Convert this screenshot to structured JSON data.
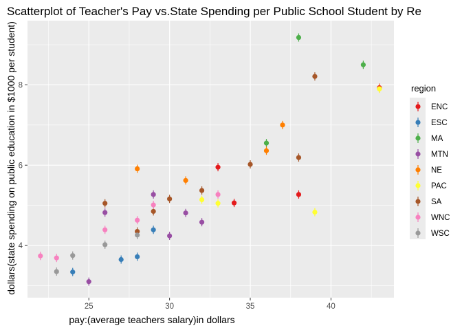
{
  "chart_data": {
    "type": "scatter",
    "title": "Scatterplot of Teacher's Pay vs.State Spending per Public School Student by Re",
    "xlabel": "pay:(average teachers salary)in dollars",
    "ylabel": "dollars(state spending on public education in $1000 per student)",
    "xlim": [
      21.2,
      43.9
    ],
    "ylim": [
      2.7,
      9.6
    ],
    "x_ticks": [
      25,
      30,
      35,
      40
    ],
    "y_ticks": [
      4,
      6,
      8
    ],
    "grid": true,
    "legend_title": "region",
    "legend_position": "right",
    "series": [
      {
        "name": "ENC",
        "color": "#e41a1c",
        "points": [
          {
            "x": 33,
            "y": 5.95
          },
          {
            "x": 34,
            "y": 5.06
          },
          {
            "x": 38,
            "y": 5.27
          },
          {
            "x": 43,
            "y": 7.93
          }
        ]
      },
      {
        "name": "ESC",
        "color": "#377eb8",
        "points": [
          {
            "x": 24,
            "y": 3.34
          },
          {
            "x": 27,
            "y": 3.65
          },
          {
            "x": 28,
            "y": 3.72
          },
          {
            "x": 29,
            "y": 4.39
          }
        ]
      },
      {
        "name": "MA",
        "color": "#4daf4a",
        "points": [
          {
            "x": 36,
            "y": 6.55
          },
          {
            "x": 38,
            "y": 9.18
          },
          {
            "x": 42,
            "y": 8.5
          }
        ]
      },
      {
        "name": "MTN",
        "color": "#984ea3",
        "points": [
          {
            "x": 25,
            "y": 3.1
          },
          {
            "x": 26,
            "y": 4.82
          },
          {
            "x": 29,
            "y": 5.27
          },
          {
            "x": 30,
            "y": 4.24
          },
          {
            "x": 31,
            "y": 4.81
          },
          {
            "x": 32,
            "y": 4.58
          }
        ]
      },
      {
        "name": "NE",
        "color": "#ff7f00",
        "points": [
          {
            "x": 28,
            "y": 5.91
          },
          {
            "x": 31,
            "y": 5.62
          },
          {
            "x": 36,
            "y": 6.36
          },
          {
            "x": 37,
            "y": 7.0
          },
          {
            "x": 43,
            "y": 7.91
          }
        ]
      },
      {
        "name": "PAC",
        "color": "#ffff33",
        "points": [
          {
            "x": 32,
            "y": 5.14
          },
          {
            "x": 33,
            "y": 5.05
          },
          {
            "x": 39,
            "y": 4.83
          },
          {
            "x": 43,
            "y": 7.9
          }
        ]
      },
      {
        "name": "SA",
        "color": "#a65628",
        "points": [
          {
            "x": 26,
            "y": 5.05
          },
          {
            "x": 28,
            "y": 4.35
          },
          {
            "x": 29,
            "y": 4.85
          },
          {
            "x": 30,
            "y": 5.16
          },
          {
            "x": 32,
            "y": 5.37
          },
          {
            "x": 35,
            "y": 6.02
          },
          {
            "x": 38,
            "y": 6.19
          },
          {
            "x": 39,
            "y": 8.21
          }
        ]
      },
      {
        "name": "WNC",
        "color": "#f781bf",
        "points": [
          {
            "x": 22,
            "y": 3.74
          },
          {
            "x": 23,
            "y": 3.69
          },
          {
            "x": 26,
            "y": 4.39
          },
          {
            "x": 28,
            "y": 4.63
          },
          {
            "x": 29,
            "y": 5.01
          },
          {
            "x": 33,
            "y": 5.27
          }
        ]
      },
      {
        "name": "WSC",
        "color": "#999999",
        "points": [
          {
            "x": 23,
            "y": 3.35
          },
          {
            "x": 24,
            "y": 3.75
          },
          {
            "x": 26,
            "y": 4.02
          },
          {
            "x": 28,
            "y": 4.26
          }
        ]
      }
    ]
  }
}
